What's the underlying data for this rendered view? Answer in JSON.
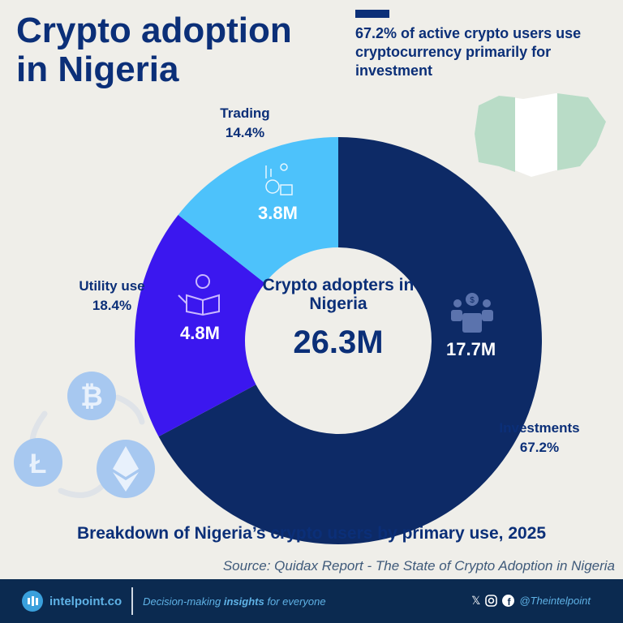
{
  "header": {
    "title_line1": "Crypto adoption",
    "title_line2": "in Nigeria",
    "highlight": "67.2% of active crypto users use cryptocurrency primarily for investment"
  },
  "chart_data": {
    "type": "pie",
    "donut": true,
    "center_label": "Crypto adopters in Nigeria",
    "center_value": "26.3M",
    "slices": [
      {
        "name": "Investments",
        "percent": 67.2,
        "value": "17.7M",
        "value_num": 17.7,
        "color": "#0d2a66",
        "icon": "businessman-dollar-icon"
      },
      {
        "name": "Utility use",
        "percent": 18.4,
        "value": "4.8M",
        "value_num": 4.8,
        "color": "#3b17ef",
        "icon": "person-reading-icon"
      },
      {
        "name": "Trading",
        "percent": 14.4,
        "value": "3.8M",
        "value_num": 3.8,
        "color": "#4dc2fb",
        "icon": "trader-coins-icon"
      }
    ],
    "labels": {
      "Investments": "67.2%",
      "Utility use": "18.4%",
      "Trading": "14.4%"
    }
  },
  "subtitle": "Breakdown of Nigeria’s crypto users by primary use, 2025",
  "source": "Source: Quidax Report - The State of Crypto Adoption in Nigeria",
  "footer": {
    "brand": "intelpoint.co",
    "tag_pre": "Decision-making ",
    "tag_bold": "insights",
    "tag_post": " for everyone",
    "handle": "@Theintelpoint",
    "x": "𝕏"
  }
}
